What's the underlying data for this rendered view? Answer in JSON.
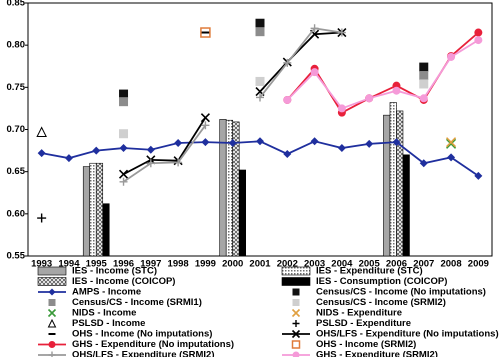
{
  "chart_data": {
    "type": "line",
    "categories": [
      "1993",
      "1994",
      "1995",
      "1996",
      "1997",
      "1998",
      "1999",
      "2000",
      "2001",
      "2002",
      "2003",
      "2004",
      "2005",
      "2006",
      "2007",
      "2008",
      "2009"
    ],
    "ylim": [
      0.55,
      0.85
    ],
    "yticks": [
      0.55,
      {
        "value": 0.6,
        "label": "0.60"
      },
      0.65,
      {
        "value": 0.7,
        "label": "0.70"
      },
      0.75,
      {
        "value": 0.8,
        "label": "0.80"
      },
      0.85
    ],
    "grid": false,
    "series": [
      {
        "name": "IES - Income (STC)",
        "kind": "bar",
        "fill": "solid",
        "color": "#a6a6a6",
        "values": [
          null,
          null,
          0.656,
          null,
          null,
          null,
          null,
          0.712,
          null,
          null,
          null,
          null,
          null,
          0.717,
          null,
          null,
          null
        ]
      },
      {
        "name": "IES - Expenditure (STC)",
        "kind": "bar",
        "fill": "dots",
        "color": "#808080",
        "values": [
          null,
          null,
          0.66,
          null,
          null,
          null,
          null,
          0.711,
          null,
          null,
          null,
          null,
          null,
          0.732,
          null,
          null,
          null
        ]
      },
      {
        "name": "IES - Income (COICOP)",
        "kind": "bar",
        "fill": "crosshatch",
        "color": "#606060",
        "values": [
          null,
          null,
          0.66,
          null,
          null,
          null,
          null,
          0.709,
          null,
          null,
          null,
          null,
          null,
          0.722,
          null,
          null,
          null
        ]
      },
      {
        "name": "IES - Consumption (COICOP)",
        "kind": "bar",
        "fill": "solid",
        "color": "#000000",
        "values": [
          null,
          null,
          0.612,
          null,
          null,
          null,
          null,
          0.652,
          null,
          null,
          null,
          null,
          null,
          0.67,
          null,
          null,
          null
        ]
      },
      {
        "name": "AMPS - Income",
        "kind": "line",
        "marker": "diamond",
        "color": "#1f2f9e",
        "values": [
          0.672,
          0.666,
          0.675,
          0.678,
          0.676,
          0.684,
          0.685,
          0.684,
          0.686,
          0.671,
          0.686,
          0.678,
          0.683,
          0.685,
          0.66,
          0.667,
          0.645
        ]
      },
      {
        "name": "Census/CS - Income (No imputations)",
        "kind": "point",
        "marker": "square",
        "color": "#111111",
        "values": [
          null,
          null,
          null,
          0.742,
          null,
          null,
          null,
          null,
          0.826,
          null,
          null,
          null,
          null,
          null,
          0.774,
          null,
          null
        ]
      },
      {
        "name": "Census/CS - Income (SRMI1)",
        "kind": "point",
        "marker": "square",
        "color": "#8c8c8c",
        "values": [
          null,
          null,
          null,
          0.733,
          null,
          null,
          null,
          null,
          0.816,
          null,
          null,
          null,
          null,
          null,
          0.764,
          null,
          null
        ]
      },
      {
        "name": "Census/CS - Income (SRMI2)",
        "kind": "point",
        "marker": "square",
        "color": "#cfcfcf",
        "values": [
          null,
          null,
          null,
          0.695,
          null,
          null,
          null,
          null,
          0.757,
          null,
          null,
          null,
          null,
          null,
          0.754,
          null,
          null
        ]
      },
      {
        "name": "NIDS - Income",
        "kind": "point",
        "marker": "x",
        "color": "#3a9a3a",
        "values": [
          null,
          null,
          null,
          null,
          null,
          null,
          null,
          null,
          null,
          null,
          null,
          null,
          null,
          null,
          null,
          0.683,
          null
        ]
      },
      {
        "name": "NIDS - Expenditure",
        "kind": "point",
        "marker": "x",
        "color": "#e0a040",
        "values": [
          null,
          null,
          null,
          null,
          null,
          null,
          null,
          null,
          null,
          null,
          null,
          null,
          null,
          null,
          null,
          0.685,
          null
        ]
      },
      {
        "name": "PSLSD - Income",
        "kind": "point",
        "marker": "triangle",
        "color": "#000000",
        "values": [
          0.697,
          null,
          null,
          null,
          null,
          null,
          null,
          null,
          null,
          null,
          null,
          null,
          null,
          null,
          null,
          null,
          null
        ]
      },
      {
        "name": "PSLSD - Expenditure",
        "kind": "point",
        "marker": "plus",
        "color": "#000000",
        "values": [
          0.595,
          null,
          null,
          null,
          null,
          null,
          null,
          null,
          null,
          null,
          null,
          null,
          null,
          null,
          null,
          null,
          null
        ]
      },
      {
        "name": "OHS - Income (No imputations)",
        "kind": "point",
        "marker": "dash",
        "color": "#000000",
        "values": [
          null,
          null,
          null,
          null,
          null,
          null,
          0.815,
          null,
          null,
          null,
          null,
          null,
          null,
          null,
          null,
          null,
          null
        ]
      },
      {
        "name": "OHS/LFS - Expenditure (No imputations)",
        "kind": "line",
        "marker": "x",
        "color": "#000000",
        "values": [
          null,
          null,
          null,
          0.647,
          0.664,
          0.663,
          0.714,
          null,
          0.745,
          0.78,
          0.813,
          0.815,
          null,
          null,
          null,
          null,
          null
        ]
      },
      {
        "name": "GHS - Expenditure (No imputations)",
        "kind": "line",
        "marker": "circle",
        "color": "#e8203a",
        "values": [
          null,
          null,
          null,
          null,
          null,
          null,
          null,
          null,
          null,
          0.735,
          0.772,
          0.72,
          0.737,
          0.752,
          0.735,
          0.787,
          0.815
        ]
      },
      {
        "name": "OHS - Income (SRMI2)",
        "kind": "point",
        "marker": "opensquare",
        "color": "#e07b3a",
        "values": [
          null,
          null,
          null,
          null,
          null,
          null,
          0.815,
          null,
          null,
          null,
          null,
          null,
          null,
          null,
          null,
          null,
          null
        ]
      },
      {
        "name": "OHS/LFS - Expenditure (SRMI2)",
        "kind": "line",
        "marker": "plus",
        "color": "#9a9a9a",
        "values": [
          null,
          null,
          null,
          0.638,
          0.66,
          0.661,
          0.705,
          null,
          0.738,
          0.779,
          0.82,
          0.815,
          null,
          null,
          null,
          null,
          null
        ]
      },
      {
        "name": "GHS - Expenditure (SRMI2)",
        "kind": "line",
        "marker": "circle",
        "color": "#f59ad8",
        "values": [
          null,
          null,
          null,
          null,
          null,
          null,
          null,
          null,
          null,
          0.735,
          0.768,
          0.725,
          0.737,
          0.746,
          0.737,
          0.786,
          0.806
        ]
      }
    ]
  }
}
